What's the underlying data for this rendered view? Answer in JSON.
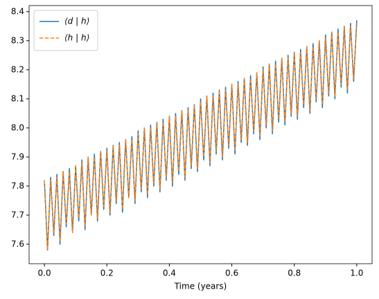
{
  "chart_data": {
    "type": "line",
    "xlabel": "Time (years)",
    "x": [
      0,
      0.01,
      0.02,
      0.03,
      0.04,
      0.05,
      0.06,
      0.07,
      0.08,
      0.09,
      0.1,
      0.11,
      0.12,
      0.13,
      0.14,
      0.15,
      0.16,
      0.17,
      0.18,
      0.19,
      0.2,
      0.21,
      0.22,
      0.23,
      0.24,
      0.25,
      0.26,
      0.27,
      0.28,
      0.29,
      0.3,
      0.31,
      0.32,
      0.33,
      0.34,
      0.35,
      0.36,
      0.37,
      0.38,
      0.39,
      0.4,
      0.41,
      0.42,
      0.43,
      0.44,
      0.45,
      0.46,
      0.47,
      0.48,
      0.49,
      0.5,
      0.51,
      0.52,
      0.53,
      0.54,
      0.55,
      0.56,
      0.57,
      0.58,
      0.59,
      0.6,
      0.61,
      0.62,
      0.63,
      0.64,
      0.65,
      0.66,
      0.67,
      0.68,
      0.69,
      0.7,
      0.71,
      0.72,
      0.73,
      0.74,
      0.75,
      0.76,
      0.77,
      0.78,
      0.79,
      0.8,
      0.81,
      0.82,
      0.83,
      0.84,
      0.85,
      0.86,
      0.87,
      0.88,
      0.89,
      0.9,
      0.91,
      0.92,
      0.93,
      0.94,
      0.95,
      0.96,
      0.97,
      0.98,
      0.99,
      1
    ],
    "series": [
      {
        "name": "⟨d | h⟩",
        "color": "#1f77b4",
        "linestyle": "solid",
        "values": [
          7.82,
          7.58,
          7.83,
          7.63,
          7.84,
          7.6,
          7.85,
          7.66,
          7.86,
          7.64,
          7.87,
          7.68,
          7.89,
          7.65,
          7.9,
          7.7,
          7.91,
          7.68,
          7.92,
          7.72,
          7.93,
          7.7,
          7.94,
          7.74,
          7.95,
          7.71,
          7.96,
          7.76,
          7.97,
          7.74,
          7.99,
          7.78,
          8.0,
          7.76,
          8.01,
          7.8,
          8.02,
          7.78,
          8.03,
          7.82,
          8.04,
          7.8,
          8.05,
          7.84,
          8.06,
          7.82,
          8.07,
          7.86,
          8.08,
          7.85,
          8.1,
          7.89,
          8.11,
          7.87,
          8.12,
          7.91,
          8.13,
          7.89,
          8.14,
          7.93,
          8.15,
          7.91,
          8.16,
          7.95,
          8.17,
          7.94,
          8.18,
          7.98,
          8.19,
          7.96,
          8.21,
          8.0,
          8.22,
          7.98,
          8.23,
          8.02,
          8.24,
          8.01,
          8.25,
          8.04,
          8.26,
          8.03,
          8.27,
          8.07,
          8.28,
          8.05,
          8.29,
          8.09,
          8.3,
          8.07,
          8.32,
          8.11,
          8.33,
          8.1,
          8.34,
          8.14,
          8.35,
          8.12,
          8.36,
          8.16,
          8.37
        ]
      },
      {
        "name": "⟨h | h⟩",
        "color": "#ff7f0e",
        "linestyle": "dashed",
        "values": [
          7.82,
          7.58,
          7.82,
          7.64,
          7.83,
          7.61,
          7.85,
          7.67,
          7.85,
          7.64,
          7.87,
          7.69,
          7.88,
          7.66,
          7.9,
          7.7,
          7.9,
          7.69,
          7.92,
          7.73,
          7.92,
          7.71,
          7.94,
          7.75,
          7.94,
          7.72,
          7.96,
          7.76,
          7.96,
          7.75,
          7.98,
          7.79,
          8.0,
          7.77,
          8.0,
          7.81,
          8.02,
          7.79,
          8.02,
          7.83,
          8.04,
          7.81,
          8.04,
          7.85,
          8.06,
          7.83,
          8.06,
          7.87,
          8.08,
          7.86,
          8.09,
          7.9,
          8.11,
          7.88,
          8.11,
          7.92,
          8.13,
          7.9,
          8.13,
          7.94,
          8.15,
          7.92,
          8.15,
          7.96,
          8.17,
          7.95,
          8.17,
          7.99,
          8.19,
          7.97,
          8.2,
          8.01,
          8.22,
          7.99,
          8.22,
          8.03,
          8.24,
          8.02,
          8.24,
          8.05,
          8.26,
          8.04,
          8.26,
          8.08,
          8.28,
          8.06,
          8.28,
          8.1,
          8.3,
          8.08,
          8.31,
          8.12,
          8.33,
          8.11,
          8.33,
          8.15,
          8.35,
          8.13,
          8.35,
          8.17,
          8.36
        ]
      }
    ],
    "xlim": [
      -0.049,
      1.049
    ],
    "xticks": [
      {
        "value": 0,
        "label": "0.0"
      },
      0.2,
      0.4,
      0.6,
      0.8,
      {
        "value": 1,
        "label": "1.0"
      }
    ],
    "ylim": [
      7.533,
      8.421
    ],
    "yticks": [
      7.6,
      7.7,
      7.8,
      7.9,
      {
        "value": 8,
        "label": "8.0"
      },
      8.1,
      8.2,
      8.3,
      8.4
    ],
    "grid": false,
    "legend": "upper left"
  }
}
